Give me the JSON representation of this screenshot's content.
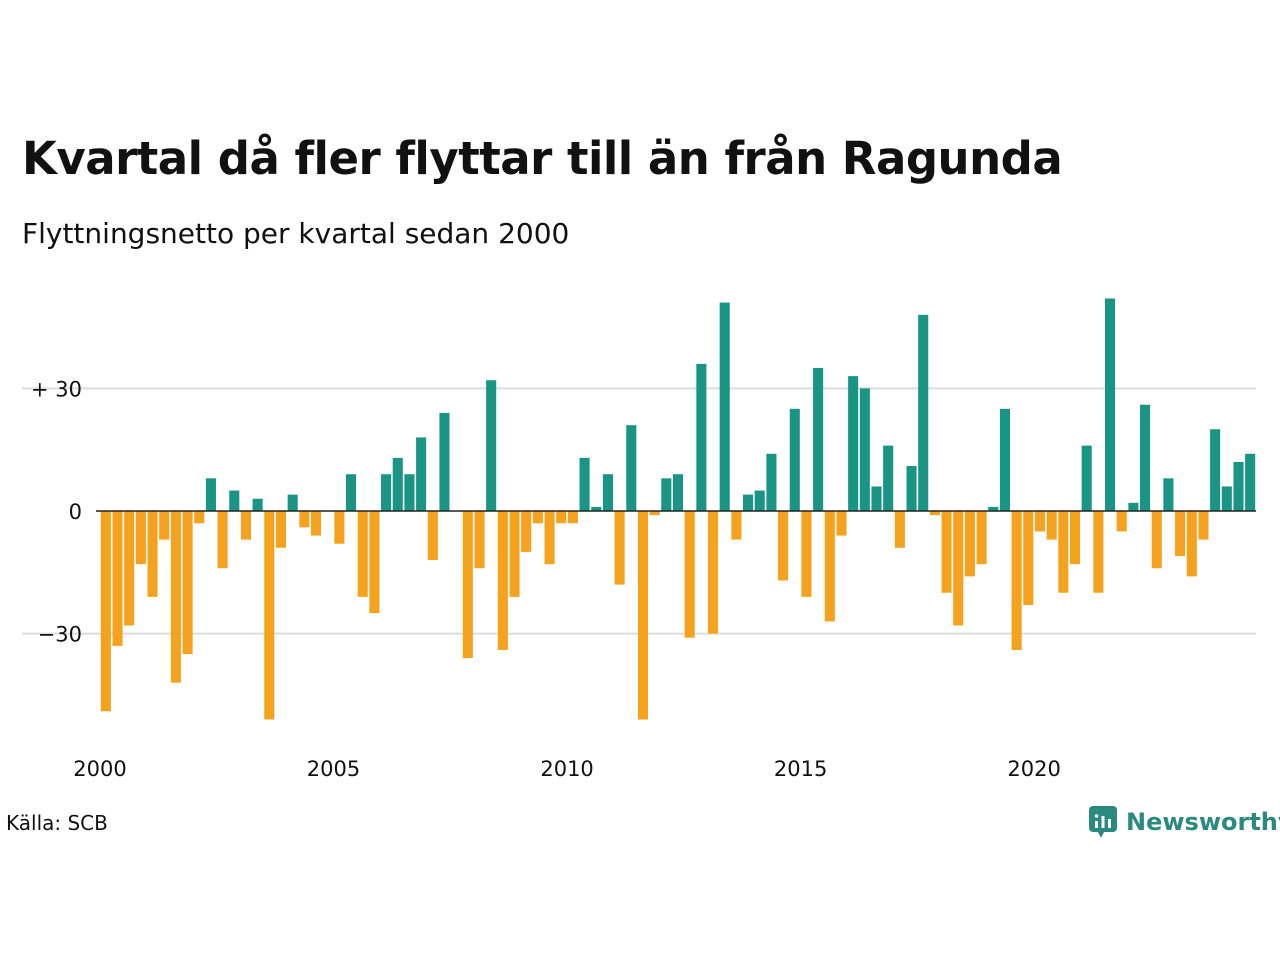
{
  "header": {
    "title": "Kvartal då fler flyttar till än från Ragunda",
    "subtitle": "Flyttningsnetto per kvartal sedan 2000"
  },
  "footer": {
    "source": "Källa: SCB",
    "brand": "Newsworthy"
  },
  "colors": {
    "positive": "#1a9485",
    "negative": "#f5a21f",
    "grid": "#dddddd",
    "zero_line": "#222222",
    "brand": "#2a8a7f"
  },
  "icons": {
    "brand": "newsworthy-logo-icon"
  },
  "chart_data": {
    "type": "bar",
    "title": "Kvartal då fler flyttar till än från Ragunda",
    "subtitle": "Flyttningsnetto per kvartal sedan 2000",
    "xlabel": "",
    "ylabel": "",
    "ylim": [
      -53,
      53
    ],
    "y_ticks": [
      {
        "value": 30,
        "label": "+ 30"
      },
      {
        "value": 0,
        "label": "0"
      },
      {
        "value": -30,
        "label": "−30"
      }
    ],
    "x_tick_labels": [
      {
        "year": 2000,
        "label": "2000"
      },
      {
        "year": 2005,
        "label": "2005"
      },
      {
        "year": 2010,
        "label": "2010"
      },
      {
        "year": 2015,
        "label": "2015"
      },
      {
        "year": 2020,
        "label": "2020"
      }
    ],
    "grid": "horizontal",
    "legend": "none",
    "start_year": 2000,
    "start_quarter": 1,
    "values": [
      -49,
      -33,
      -28,
      -13,
      -21,
      -7,
      -42,
      -35,
      -3,
      8,
      -14,
      5,
      -7,
      3,
      -51,
      -9,
      4,
      -4,
      -6,
      0,
      -8,
      9,
      -21,
      -25,
      9,
      13,
      9,
      18,
      -12,
      24,
      0,
      -36,
      -14,
      32,
      -34,
      -21,
      -10,
      -3,
      -13,
      -3,
      -3,
      13,
      1,
      9,
      -18,
      21,
      -51,
      -1,
      8,
      9,
      -31,
      36,
      -30,
      51,
      -7,
      4,
      5,
      14,
      -17,
      25,
      -21,
      35,
      -27,
      -6,
      33,
      30,
      6,
      16,
      -9,
      11,
      48,
      -1,
      -20,
      -28,
      -16,
      -13,
      1,
      25,
      -34,
      -23,
      -5,
      -7,
      -20,
      -13,
      16,
      -20,
      52,
      -5,
      2,
      26,
      -14,
      8,
      -11,
      -16,
      -7,
      20,
      6,
      12,
      14
    ]
  }
}
